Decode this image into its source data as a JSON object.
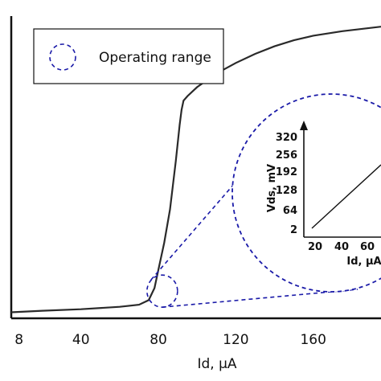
{
  "chart_data": {
    "type": "line",
    "xlabel": "Id, µA",
    "x_ticks": [
      "8",
      "40",
      "80",
      "120",
      "160"
    ],
    "x_tick_values": [
      8,
      40,
      80,
      120,
      160
    ],
    "xlim": [
      4,
      195
    ],
    "ylim": [
      0,
      1
    ],
    "y_ticks": [],
    "series": [
      {
        "name": "",
        "x": [
          4,
          20,
          40,
          60,
          70,
          75,
          78,
          80,
          83,
          86,
          89,
          91,
          92,
          93,
          95,
          100,
          110,
          120,
          130,
          140,
          150,
          160,
          175,
          195
        ],
        "y": [
          0.02,
          0.025,
          0.03,
          0.038,
          0.045,
          0.06,
          0.1,
          0.16,
          0.25,
          0.36,
          0.52,
          0.64,
          0.69,
          0.72,
          0.735,
          0.765,
          0.81,
          0.845,
          0.875,
          0.9,
          0.92,
          0.935,
          0.95,
          0.965
        ]
      }
    ],
    "legend": {
      "label": "Operating range",
      "placement": "top-left"
    },
    "highlight": {
      "x": 82,
      "y": 0.09
    },
    "inset": {
      "type": "line",
      "xlabel": "Id, µA",
      "ylabel": "Vds, mV",
      "x_ticks": [
        "20",
        "40",
        "60"
      ],
      "y_ticks": [
        "2",
        "64",
        "128",
        "192",
        "256",
        "320"
      ],
      "xlim": [
        10,
        75
      ],
      "ylim": [
        2,
        330
      ],
      "series": [
        {
          "name": "",
          "x": [
            20,
            75
          ],
          "y": [
            2,
            192
          ]
        }
      ]
    }
  }
}
